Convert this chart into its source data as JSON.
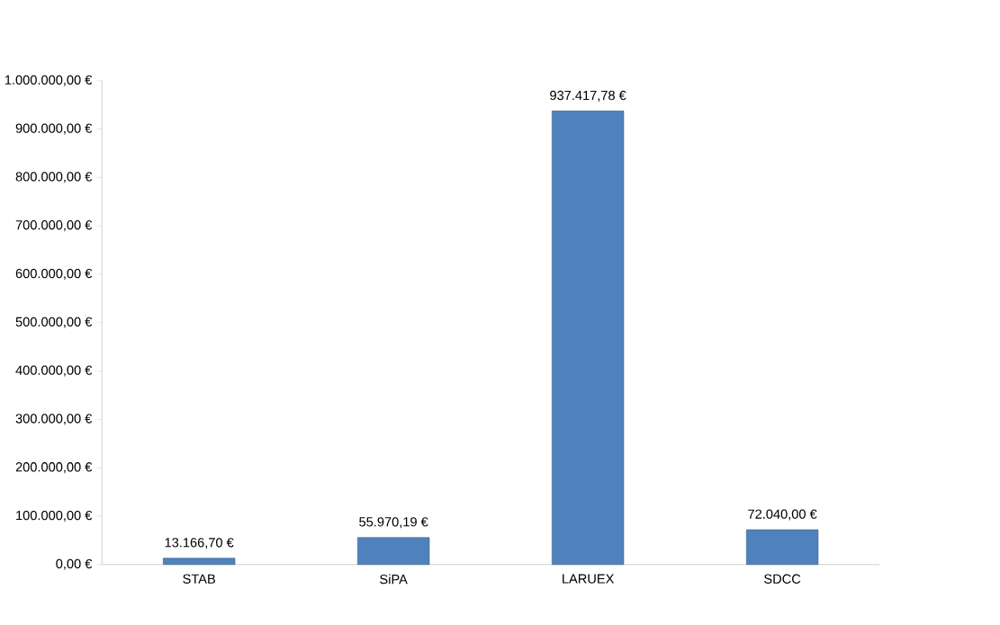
{
  "chart_data": {
    "type": "bar",
    "categories": [
      "STAB",
      "SiPA",
      "LARUEX",
      "SDCC"
    ],
    "values": [
      13166.7,
      55970.19,
      937417.78,
      72040.0
    ],
    "value_labels": [
      "13.166,70 €",
      "55.970,19 €",
      "937.417,78 €",
      "72.040,00 €"
    ],
    "color": "#4f81bd",
    "ylim": [
      0,
      1000000
    ],
    "yticks": [
      {
        "value": 0,
        "label": "0,00 €"
      },
      {
        "value": 100000,
        "label": "100.000,00 €"
      },
      {
        "value": 200000,
        "label": "200.000,00 €"
      },
      {
        "value": 300000,
        "label": "300.000,00 €"
      },
      {
        "value": 400000,
        "label": "400.000,00 €"
      },
      {
        "value": 500000,
        "label": "500.000,00 €"
      },
      {
        "value": 600000,
        "label": "600.000,00 €"
      },
      {
        "value": 700000,
        "label": "700.000,00 €"
      },
      {
        "value": 800000,
        "label": "800.000,00 €"
      },
      {
        "value": 900000,
        "label": "900.000,00 €"
      },
      {
        "value": 1000000,
        "label": "1.000.000,00 €"
      }
    ],
    "grid": false
  }
}
